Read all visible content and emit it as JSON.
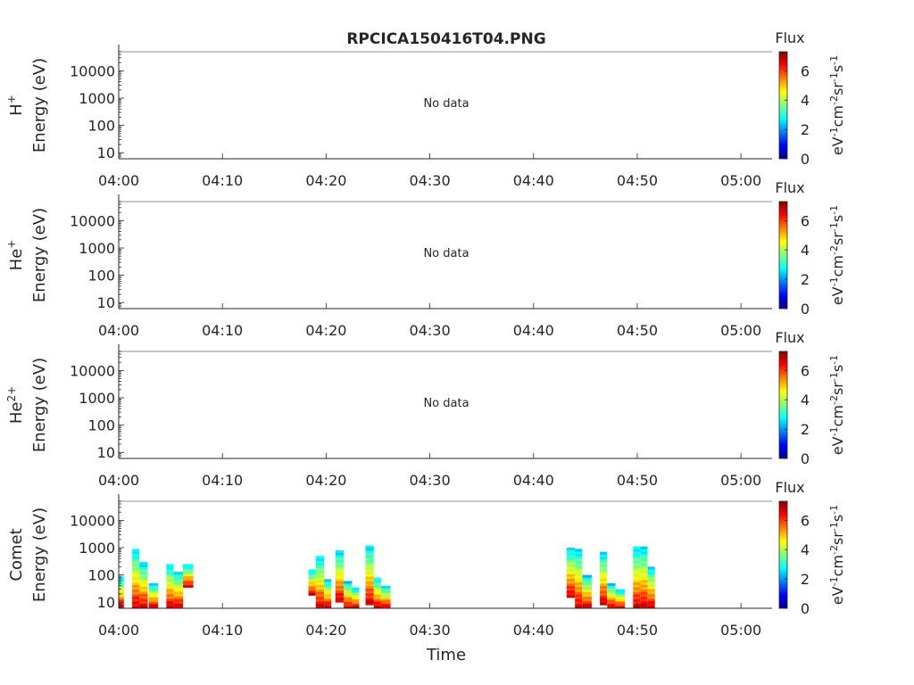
{
  "figure": {
    "title": "RPCICA150416T04.PNG",
    "xlabel": "Time"
  },
  "colorbar": {
    "title": "Flux",
    "label": "eV-1cm-2sr-1s-1",
    "label_parts": {
      "base": [
        "eV",
        "cm",
        "sr",
        "s"
      ],
      "exp": [
        "-1",
        "-2",
        "-1",
        "-1"
      ]
    },
    "ticks": [
      "0",
      "2",
      "4",
      "6"
    ],
    "range": [
      0,
      7.3
    ],
    "colormap": [
      "#00008f",
      "#0000ff",
      "#0080ff",
      "#00ffff",
      "#80ff80",
      "#ffff00",
      "#ff8000",
      "#ff0000",
      "#800000"
    ]
  },
  "chart_data": [
    {
      "type": "heatmap",
      "ylabel_species": "H+",
      "ylabel_base": "H",
      "ylabel_sup": "+",
      "ylabel_units": "Energy (eV)",
      "yscale": "log",
      "ytick_labels": [
        "10",
        "100",
        "1000",
        "10000"
      ],
      "ylim": [
        6,
        50000
      ],
      "xtick_labels": [
        "04:00",
        "04:10",
        "04:20",
        "04:30",
        "04:40",
        "04:50",
        "05:00"
      ],
      "xlim_minutes": [
        0,
        63
      ],
      "message": "No data",
      "columns": []
    },
    {
      "type": "heatmap",
      "ylabel_species": "He+",
      "ylabel_base": "He",
      "ylabel_sup": "+",
      "ylabel_units": "Energy (eV)",
      "yscale": "log",
      "ytick_labels": [
        "10",
        "100",
        "1000",
        "10000"
      ],
      "ylim": [
        6,
        50000
      ],
      "xtick_labels": [
        "04:00",
        "04:10",
        "04:20",
        "04:30",
        "04:40",
        "04:50",
        "05:00"
      ],
      "xlim_minutes": [
        0,
        63
      ],
      "message": "No data",
      "columns": []
    },
    {
      "type": "heatmap",
      "ylabel_species": "He2+",
      "ylabel_base": "He",
      "ylabel_sup": "2+",
      "ylabel_units": "Energy (eV)",
      "yscale": "log",
      "ytick_labels": [
        "10",
        "100",
        "1000",
        "10000"
      ],
      "ylim": [
        6,
        50000
      ],
      "xtick_labels": [
        "04:00",
        "04:10",
        "04:20",
        "04:30",
        "04:40",
        "04:50",
        "05:00"
      ],
      "xlim_minutes": [
        0,
        63
      ],
      "message": "No data",
      "columns": []
    },
    {
      "type": "heatmap",
      "ylabel_species": "Comet",
      "ylabel_base": "Comet",
      "ylabel_sup": "",
      "ylabel_units": "Energy (eV)",
      "yscale": "log",
      "ytick_labels": [
        "10",
        "100",
        "1000",
        "10000"
      ],
      "ylim": [
        6,
        50000
      ],
      "xtick_labels": [
        "04:00",
        "04:10",
        "04:20",
        "04:30",
        "04:40",
        "04:50",
        "05:00"
      ],
      "xlim_minutes": [
        0,
        63
      ],
      "message": "",
      "columns": [
        {
          "t0": 0.0,
          "t1": 0.5,
          "emin": 6,
          "emax": 90
        },
        {
          "t0": 1.3,
          "t1": 2.0,
          "emin": 6,
          "emax": 900
        },
        {
          "t0": 2.0,
          "t1": 2.8,
          "emin": 6,
          "emax": 300
        },
        {
          "t0": 2.9,
          "t1": 3.8,
          "emin": 6,
          "emax": 50
        },
        {
          "t0": 4.6,
          "t1": 5.3,
          "emin": 6,
          "emax": 250
        },
        {
          "t0": 5.3,
          "t1": 6.2,
          "emin": 6,
          "emax": 130
        },
        {
          "t0": 6.2,
          "t1": 7.2,
          "emin": 35,
          "emax": 250
        },
        {
          "t0": 18.3,
          "t1": 19.0,
          "emin": 18,
          "emax": 160
        },
        {
          "t0": 19.0,
          "t1": 19.8,
          "emin": 6,
          "emax": 500
        },
        {
          "t0": 19.8,
          "t1": 20.5,
          "emin": 6,
          "emax": 70
        },
        {
          "t0": 20.9,
          "t1": 21.7,
          "emin": 10,
          "emax": 800
        },
        {
          "t0": 21.7,
          "t1": 22.5,
          "emin": 6,
          "emax": 60
        },
        {
          "t0": 22.5,
          "t1": 23.2,
          "emin": 6,
          "emax": 35
        },
        {
          "t0": 23.8,
          "t1": 24.6,
          "emin": 8,
          "emax": 1200
        },
        {
          "t0": 24.6,
          "t1": 25.3,
          "emin": 6,
          "emax": 80
        },
        {
          "t0": 25.3,
          "t1": 26.2,
          "emin": 6,
          "emax": 40
        },
        {
          "t0": 43.2,
          "t1": 44.0,
          "emin": 15,
          "emax": 1000
        },
        {
          "t0": 44.0,
          "t1": 44.7,
          "emin": 6,
          "emax": 900
        },
        {
          "t0": 44.7,
          "t1": 45.6,
          "emin": 6,
          "emax": 100
        },
        {
          "t0": 46.4,
          "t1": 47.1,
          "emin": 8,
          "emax": 700
        },
        {
          "t0": 47.1,
          "t1": 47.9,
          "emin": 6,
          "emax": 50
        },
        {
          "t0": 47.9,
          "t1": 48.8,
          "emin": 6,
          "emax": 30
        },
        {
          "t0": 49.6,
          "t1": 50.3,
          "emin": 6,
          "emax": 1100
        },
        {
          "t0": 50.3,
          "t1": 51.0,
          "emin": 6,
          "emax": 1100
        },
        {
          "t0": 51.0,
          "t1": 51.7,
          "emin": 6,
          "emax": 200
        }
      ]
    }
  ]
}
